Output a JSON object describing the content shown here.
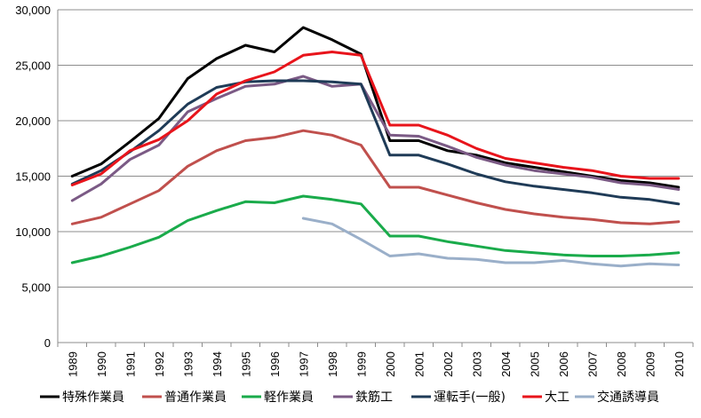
{
  "chart_data": {
    "type": "line",
    "title": "",
    "xlabel": "",
    "ylabel": "",
    "ylim": [
      0,
      30000
    ],
    "yticks": [
      0,
      5000,
      10000,
      15000,
      20000,
      25000,
      30000
    ],
    "ytick_labels": [
      "0",
      "5,000",
      "10,000",
      "15,000",
      "20,000",
      "25,000",
      "30,000"
    ],
    "grid": "horizontal",
    "legend_position": "bottom",
    "x": [
      "1989",
      "1990",
      "1991",
      "1992",
      "1993",
      "1994",
      "1995",
      "1996",
      "1997",
      "1998",
      "1999",
      "2000",
      "2001",
      "2002",
      "2003",
      "2004",
      "2005",
      "2006",
      "2007",
      "2008",
      "2009",
      "2010"
    ],
    "series": [
      {
        "name": "特殊作業員",
        "color": "#000000",
        "values": [
          15000,
          16100,
          18100,
          20200,
          23800,
          25600,
          26800,
          26200,
          28400,
          27300,
          26000,
          18200,
          18200,
          17300,
          16900,
          16200,
          15800,
          15400,
          15000,
          14600,
          14400,
          14000
        ]
      },
      {
        "name": "普通作業員",
        "color": "#c0504d",
        "values": [
          10700,
          11300,
          12500,
          13700,
          15900,
          17300,
          18200,
          18500,
          19100,
          18700,
          17800,
          14000,
          14000,
          13300,
          12600,
          12000,
          11600,
          11300,
          11100,
          10800,
          10700,
          10900
        ]
      },
      {
        "name": "軽作業員",
        "color": "#1aab4b",
        "values": [
          7200,
          7800,
          8600,
          9500,
          11000,
          11900,
          12700,
          12600,
          13200,
          12900,
          12500,
          9600,
          9600,
          9100,
          8700,
          8300,
          8100,
          7900,
          7800,
          7800,
          7900,
          8100
        ]
      },
      {
        "name": "鉄筋工",
        "color": "#7b5a85",
        "values": [
          12800,
          14300,
          16500,
          17800,
          20800,
          22000,
          23100,
          23300,
          24000,
          23100,
          23300,
          18700,
          18600,
          17700,
          16700,
          16000,
          15500,
          15200,
          14900,
          14400,
          14200,
          13800
        ]
      },
      {
        "name": "運転手(一般)",
        "color": "#1f3b57",
        "values": [
          14300,
          15500,
          17200,
          19100,
          21500,
          23000,
          23500,
          23600,
          23600,
          23500,
          23300,
          16900,
          16900,
          16100,
          15200,
          14500,
          14100,
          13800,
          13500,
          13100,
          12900,
          12500
        ]
      },
      {
        "name": "大工",
        "color": "#e8141b",
        "values": [
          14200,
          15200,
          17300,
          18300,
          20000,
          22400,
          23600,
          24400,
          25900,
          26200,
          25900,
          19600,
          19600,
          18700,
          17500,
          16600,
          16200,
          15800,
          15500,
          15000,
          14800,
          14800
        ]
      },
      {
        "name": "交通誘導員",
        "color": "#9aafc9",
        "values": [
          null,
          null,
          null,
          null,
          null,
          null,
          null,
          null,
          11200,
          10700,
          9300,
          7800,
          8000,
          7600,
          7500,
          7200,
          7200,
          7400,
          7100,
          6900,
          7100,
          7000
        ]
      }
    ]
  }
}
